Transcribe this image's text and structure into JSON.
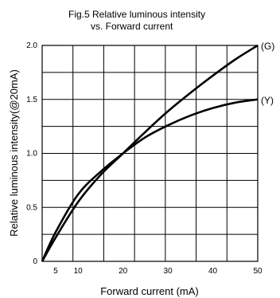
{
  "chart_data": {
    "type": "line",
    "title_line1": "Fig.5 Relative luminous intensity",
    "title_line2": "vs. Forward current",
    "xlabel": "Forward current (mA)",
    "ylabel": "Relative luminous intensity(@20mA)",
    "xlim": [
      2,
      50
    ],
    "ylim": [
      0,
      2.0
    ],
    "x_ticks": [
      5,
      10,
      20,
      30,
      40,
      50
    ],
    "x_tick_labels": [
      "5",
      "10",
      "20",
      "30",
      "40",
      "50"
    ],
    "y_ticks": [
      0,
      0.5,
      1.0,
      1.5,
      2.0
    ],
    "y_tick_labels": [
      "0",
      "0.5",
      "1.0",
      "1.5",
      "2.0"
    ],
    "grid": true,
    "series": [
      {
        "name": "(G)",
        "x": [
          2,
          5,
          10,
          15,
          20,
          25,
          30,
          35,
          40,
          45,
          50
        ],
        "values": [
          0,
          0.22,
          0.55,
          0.8,
          1.0,
          1.2,
          1.39,
          1.56,
          1.72,
          1.87,
          2.0
        ]
      },
      {
        "name": "(Y)",
        "x": [
          2,
          5,
          10,
          15,
          20,
          25,
          30,
          35,
          40,
          45,
          50
        ],
        "values": [
          0,
          0.27,
          0.62,
          0.83,
          1.0,
          1.15,
          1.26,
          1.35,
          1.42,
          1.47,
          1.5
        ]
      }
    ]
  }
}
